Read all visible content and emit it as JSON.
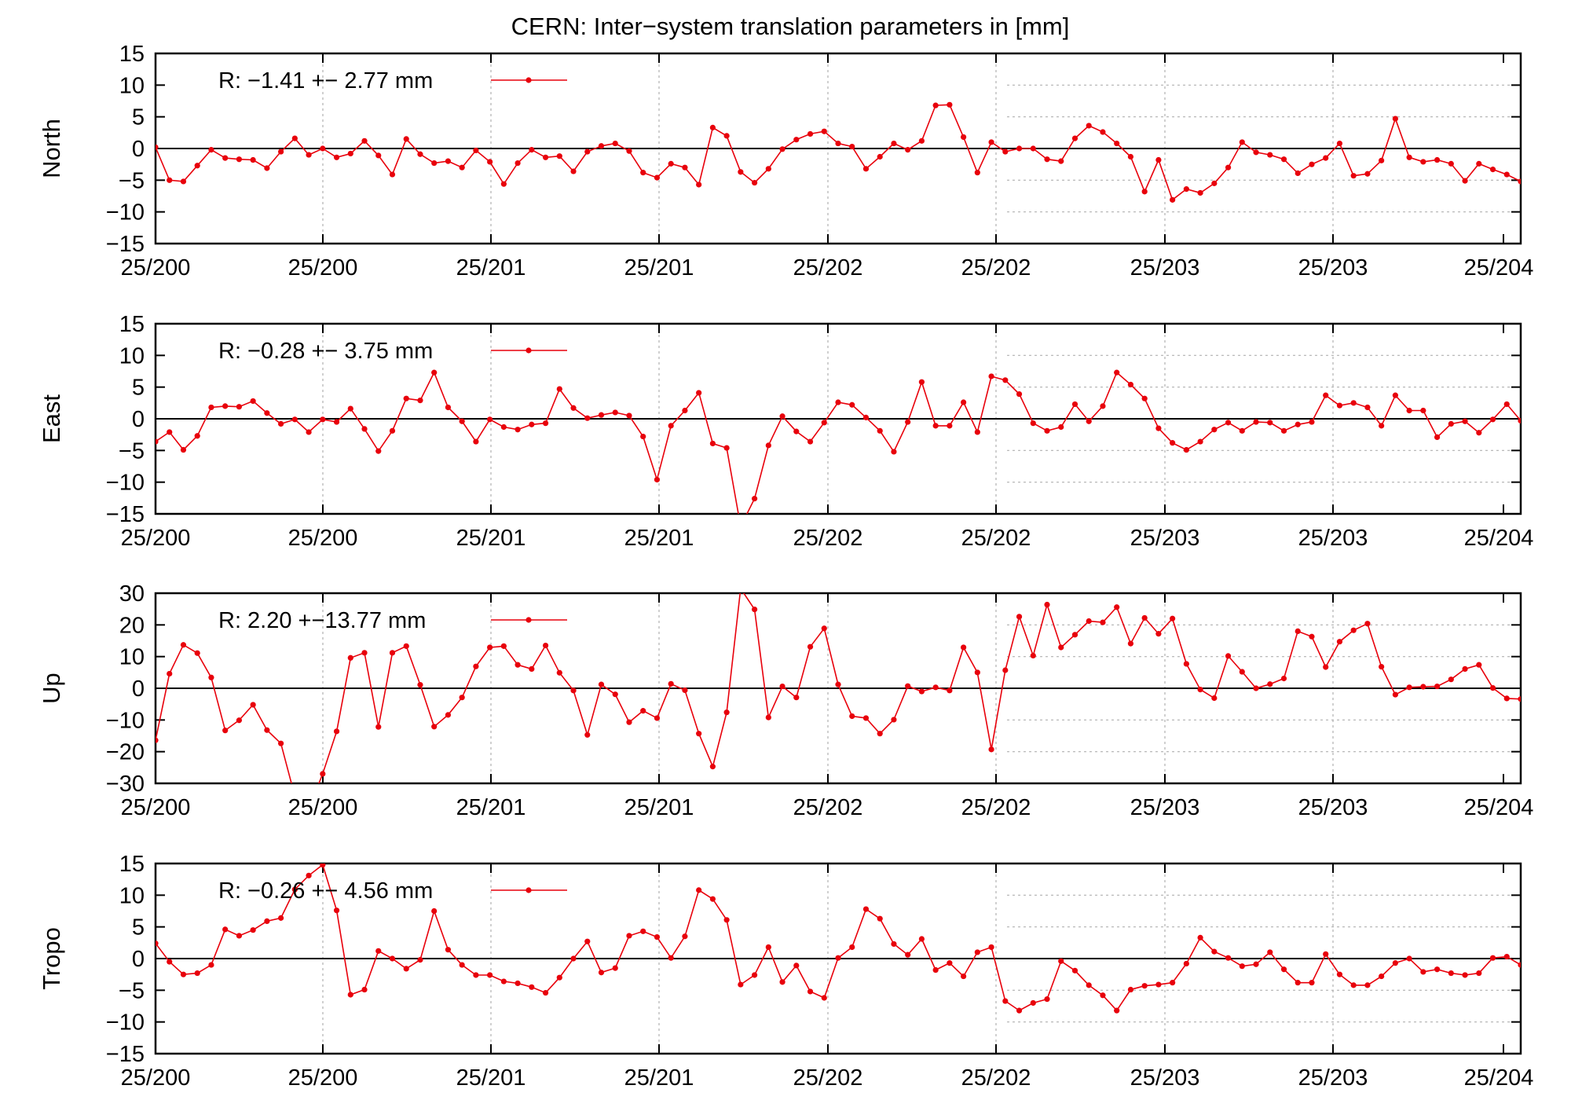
{
  "title": "CERN: Inter−system translation parameters in [mm]",
  "chart_data": [
    {
      "type": "line",
      "ylabel": "North",
      "legend": "R:  −1.41 +− 2.77 mm",
      "ylim": [
        -15,
        15
      ],
      "yticks": [
        15,
        10,
        5,
        0,
        -5,
        -10,
        -15
      ],
      "ytick_labels": [
        "15",
        "10",
        "5",
        "0",
        "−5",
        "−10",
        "−15"
      ],
      "xticks": [
        "25/200",
        "25/200",
        "25/201",
        "25/201",
        "25/202",
        "25/202",
        "25/203",
        "25/203",
        "25/204"
      ],
      "line_color": "#e8000b",
      "values": [
        0.2,
        -5.0,
        -5.2,
        -2.7,
        -0.2,
        -1.5,
        -1.7,
        -1.8,
        -3.1,
        -0.5,
        1.6,
        -1.0,
        0.0,
        -1.4,
        -0.8,
        1.2,
        -1.1,
        -4.1,
        1.5,
        -0.9,
        -2.3,
        -2.0,
        -3.0,
        -0.3,
        -2.1,
        -5.6,
        -2.3,
        -0.2,
        -1.4,
        -1.2,
        -3.6,
        -0.5,
        0.4,
        0.8,
        -0.4,
        -3.8,
        -4.6,
        -2.4,
        -3.0,
        -5.7,
        3.3,
        2.0,
        -3.7,
        -5.4,
        -3.2,
        -0.1,
        1.4,
        2.3,
        2.7,
        0.8,
        0.3,
        -3.2,
        -1.3,
        0.8,
        -0.2,
        1.2,
        6.8,
        6.9,
        1.8,
        -3.8,
        1.0,
        -0.5,
        0.0,
        0.0,
        -1.7,
        -2.0,
        1.6,
        3.6,
        2.6,
        0.8,
        -1.3,
        -6.8,
        -1.8,
        -8.1,
        -6.4,
        -7.0,
        -5.5,
        -3.0,
        1.0,
        -0.6,
        -1.0,
        -1.7,
        -3.9,
        -2.5,
        -1.5,
        0.8,
        -4.3,
        -4.0,
        -1.9,
        4.7,
        -1.4,
        -2.1,
        -1.8,
        -2.4,
        -5.1,
        -2.4,
        -3.3,
        -4.1,
        -5.2
      ]
    },
    {
      "type": "line",
      "ylabel": "East",
      "legend": "R:  −0.28 +− 3.75 mm",
      "ylim": [
        -15,
        15
      ],
      "yticks": [
        15,
        10,
        5,
        0,
        -5,
        -10,
        -15
      ],
      "ytick_labels": [
        "15",
        "10",
        "5",
        "0",
        "−5",
        "−10",
        "−15"
      ],
      "xticks": [
        "25/200",
        "25/200",
        "25/201",
        "25/201",
        "25/202",
        "25/202",
        "25/203",
        "25/203",
        "25/204"
      ],
      "line_color": "#e8000b",
      "values": [
        -3.6,
        -2.1,
        -4.9,
        -2.7,
        1.8,
        2.0,
        1.9,
        2.8,
        0.9,
        -0.8,
        -0.1,
        -2.1,
        -0.1,
        -0.5,
        1.6,
        -1.6,
        -5.1,
        -1.9,
        3.2,
        2.9,
        7.3,
        1.8,
        -0.4,
        -3.6,
        -0.1,
        -1.3,
        -1.7,
        -0.9,
        -0.7,
        4.7,
        1.7,
        0.1,
        0.6,
        1.0,
        0.5,
        -2.8,
        -9.6,
        -1.1,
        1.3,
        4.1,
        -3.9,
        -4.6,
        -17.0,
        -12.6,
        -4.2,
        0.4,
        -2.0,
        -3.6,
        -0.6,
        2.6,
        2.2,
        0.2,
        -1.9,
        -5.2,
        -0.5,
        5.8,
        -1.1,
        -1.1,
        2.6,
        -2.1,
        6.7,
        6.1,
        3.9,
        -0.7,
        -1.9,
        -1.3,
        2.3,
        -0.4,
        2.0,
        7.3,
        5.4,
        3.2,
        -1.5,
        -3.8,
        -4.9,
        -3.6,
        -1.7,
        -0.6,
        -1.9,
        -0.5,
        -0.6,
        -1.9,
        -0.9,
        -0.5,
        3.7,
        2.1,
        2.5,
        1.8,
        -1.1,
        3.7,
        1.3,
        1.3,
        -2.9,
        -0.8,
        -0.4,
        -2.2,
        -0.1,
        2.3,
        -0.3
      ]
    },
    {
      "type": "line",
      "ylabel": "Up",
      "legend": "R:   2.20 +−13.77 mm",
      "ylim": [
        -30,
        30
      ],
      "yticks": [
        30,
        20,
        10,
        0,
        -10,
        -20,
        -30
      ],
      "ytick_labels": [
        "30",
        "20",
        "10",
        "0",
        "−10",
        "−20",
        "−30"
      ],
      "xticks": [
        "25/200",
        "25/200",
        "25/201",
        "25/201",
        "25/202",
        "25/202",
        "25/203",
        "25/203",
        "25/204"
      ],
      "line_color": "#e8000b",
      "values": [
        -16.4,
        4.6,
        13.7,
        11.1,
        3.4,
        -13.3,
        -10.1,
        -5.2,
        -13.2,
        -17.4,
        -34.0,
        -38.0,
        -27.0,
        -13.6,
        9.6,
        11.2,
        -12.2,
        11.2,
        13.3,
        1.1,
        -12.1,
        -8.4,
        -2.9,
        6.9,
        12.9,
        13.3,
        7.4,
        6.1,
        13.5,
        4.9,
        -0.7,
        -14.7,
        1.2,
        -1.9,
        -10.7,
        -7.1,
        -9.4,
        1.4,
        -0.6,
        -14.3,
        -24.7,
        -7.6,
        31.5,
        24.9,
        -9.2,
        0.6,
        -2.9,
        13.1,
        18.9,
        1.2,
        -8.8,
        -9.4,
        -14.3,
        -9.9,
        0.7,
        -1.0,
        0.3,
        -0.7,
        12.9,
        5.0,
        -19.3,
        5.7,
        22.6,
        10.3,
        26.4,
        12.9,
        16.9,
        21.2,
        20.8,
        25.6,
        14.1,
        22.2,
        17.2,
        22.0,
        7.7,
        -0.4,
        -3.1,
        10.2,
        5.2,
        0.0,
        1.3,
        3.1,
        18.0,
        16.3,
        6.7,
        14.7,
        18.3,
        20.4,
        6.8,
        -2.0,
        0.3,
        0.5,
        0.6,
        2.8,
        6.1,
        7.4,
        0.1,
        -3.2,
        -3.4
      ]
    },
    {
      "type": "line",
      "ylabel": "Tropo",
      "legend": "R:  −0.26 +− 4.56 mm",
      "ylim": [
        -15,
        15
      ],
      "yticks": [
        15,
        10,
        5,
        0,
        -5,
        -10,
        -15
      ],
      "ytick_labels": [
        "15",
        "10",
        "5",
        "0",
        "−5",
        "−10",
        "−15"
      ],
      "xticks": [
        "25/200",
        "25/200",
        "25/201",
        "25/201",
        "25/202",
        "25/202",
        "25/203",
        "25/203",
        "25/204"
      ],
      "line_color": "#e8000b",
      "values": [
        2.4,
        -0.5,
        -2.5,
        -2.3,
        -1.0,
        4.6,
        3.6,
        4.5,
        5.9,
        6.4,
        10.9,
        13.1,
        14.8,
        7.6,
        -5.7,
        -4.9,
        1.2,
        0.0,
        -1.6,
        -0.2,
        7.5,
        1.4,
        -1.0,
        -2.6,
        -2.6,
        -3.6,
        -3.9,
        -4.5,
        -5.4,
        -3.0,
        0.0,
        2.7,
        -2.2,
        -1.5,
        3.6,
        4.3,
        3.4,
        0.1,
        3.5,
        10.8,
        9.4,
        6.1,
        -4.1,
        -2.6,
        1.8,
        -3.7,
        -1.1,
        -5.2,
        -6.2,
        0.1,
        1.8,
        7.8,
        6.3,
        2.3,
        0.6,
        3.1,
        -1.8,
        -0.7,
        -2.8,
        1.0,
        1.8,
        -6.7,
        -8.2,
        -7.0,
        -6.4,
        -0.4,
        -1.9,
        -4.2,
        -5.8,
        -8.2,
        -4.9,
        -4.3,
        -4.1,
        -3.8,
        -0.8,
        3.3,
        1.1,
        0.1,
        -1.2,
        -0.9,
        1.0,
        -1.7,
        -3.8,
        -3.8,
        0.7,
        -2.5,
        -4.2,
        -4.2,
        -2.8,
        -0.7,
        0.0,
        -2.1,
        -1.7,
        -2.3,
        -2.6,
        -2.3,
        0.1,
        0.3,
        -1.0
      ]
    }
  ]
}
